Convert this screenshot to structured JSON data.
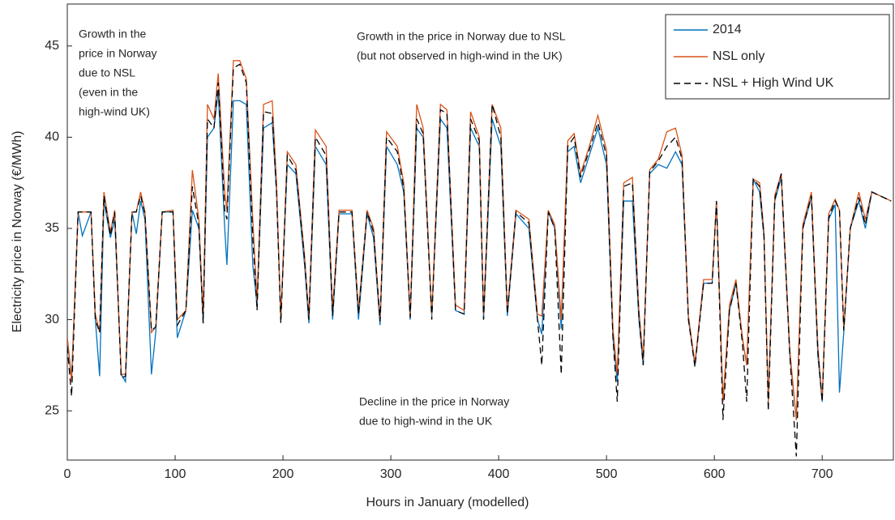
{
  "chart_data": {
    "type": "line",
    "x_label": "Hours in January (modelled)",
    "y_label": "Electricity price in Norway (€/MWh)",
    "xlim": [
      0,
      766
    ],
    "ylim": [
      22.3,
      47.3
    ],
    "xticks": [
      0,
      100,
      200,
      300,
      400,
      500,
      600,
      700
    ],
    "yticks": [
      25,
      30,
      35,
      40,
      45
    ],
    "legend": "upper right",
    "annotations": [
      [
        "Growth in the",
        "price in Norway",
        "due to NSL",
        "(even in the",
        "high-wind UK)"
      ],
      [
        "Growth in the price in Norway due to NSL",
        "(but not observed in high-wind in the UK)"
      ],
      [
        "Decline in the price in Norway",
        "due to high-wind in the UK"
      ]
    ],
    "x": [
      0,
      4,
      10,
      14,
      22,
      26,
      30,
      34,
      40,
      44,
      50,
      54,
      60,
      64,
      68,
      72,
      78,
      82,
      88,
      98,
      102,
      110,
      116,
      122,
      126,
      130,
      136,
      140,
      146,
      148,
      154,
      160,
      166,
      172,
      176,
      182,
      190,
      194,
      198,
      204,
      212,
      220,
      224,
      230,
      240,
      246,
      252,
      264,
      270,
      278,
      284,
      290,
      296,
      306,
      312,
      318,
      324,
      330,
      338,
      346,
      352,
      360,
      368,
      374,
      382,
      386,
      394,
      402,
      408,
      416,
      428,
      436,
      440,
      446,
      452,
      458,
      464,
      470,
      476,
      484,
      492,
      500,
      506,
      510,
      516,
      524,
      530,
      534,
      540,
      548,
      556,
      564,
      570,
      576,
      582,
      590,
      598,
      602,
      608,
      614,
      620,
      626,
      630,
      636,
      642,
      646,
      650,
      656,
      662,
      670,
      676,
      682,
      690,
      696,
      700,
      706,
      712,
      716,
      720,
      726,
      734,
      740,
      746,
      764
    ],
    "series": [
      {
        "name": "2014",
        "color": "#0072bd",
        "dash": false,
        "values": [
          29.0,
          26.8,
          35.9,
          34.6,
          35.9,
          30.0,
          26.9,
          36.5,
          34.5,
          35.5,
          27.0,
          26.6,
          35.9,
          34.7,
          36.5,
          35.5,
          27.0,
          29.3,
          35.9,
          35.9,
          29.0,
          30.5,
          36.0,
          35.0,
          29.8,
          40.0,
          40.5,
          42.5,
          35.0,
          33.0,
          42.0,
          42.0,
          41.8,
          33.0,
          30.8,
          40.5,
          40.8,
          37.0,
          30.0,
          38.5,
          38.0,
          33.0,
          29.8,
          39.5,
          38.5,
          30.0,
          35.8,
          35.8,
          30.0,
          35.8,
          34.5,
          29.7,
          39.5,
          38.5,
          37.0,
          30.0,
          40.5,
          40.0,
          30.2,
          41.0,
          40.5,
          30.5,
          30.3,
          40.5,
          39.5,
          30.0,
          41.0,
          39.5,
          30.2,
          35.8,
          35.0,
          30.0,
          29.2,
          35.9,
          35.0,
          29.5,
          39.2,
          39.5,
          37.5,
          39.0,
          40.5,
          38.5,
          29.0,
          26.6,
          36.5,
          36.5,
          30.0,
          27.5,
          38.0,
          38.5,
          38.3,
          39.2,
          38.5,
          30.0,
          27.5,
          32.0,
          32.0,
          36.5,
          25.5,
          30.5,
          32.0,
          29.0,
          27.5,
          37.7,
          37.0,
          34.5,
          25.5,
          36.5,
          37.8,
          28.0,
          24.5,
          35.0,
          36.7,
          28.0,
          25.5,
          35.5,
          36.3,
          26.0,
          29.3,
          35.0,
          36.5,
          35.0,
          37.0,
          36.5
        ]
      },
      {
        "name": "NSL only",
        "color": "#d95319",
        "dash": false,
        "values": [
          29.0,
          26.6,
          35.9,
          35.9,
          35.9,
          30.3,
          29.3,
          37.0,
          34.8,
          36.0,
          27.0,
          27.0,
          35.9,
          35.9,
          37.0,
          35.9,
          29.3,
          29.6,
          35.9,
          36.0,
          30.0,
          30.5,
          38.2,
          35.5,
          30.2,
          41.8,
          41.0,
          43.5,
          37.0,
          36.0,
          44.2,
          44.2,
          43.2,
          35.5,
          31.0,
          41.8,
          42.0,
          37.5,
          30.0,
          39.2,
          38.5,
          33.5,
          30.2,
          40.4,
          39.5,
          30.5,
          36.0,
          36.0,
          30.5,
          36.0,
          35.0,
          30.0,
          40.3,
          39.5,
          37.5,
          30.2,
          41.8,
          40.5,
          30.3,
          41.8,
          41.5,
          30.8,
          30.5,
          41.4,
          40.0,
          30.3,
          41.8,
          40.5,
          30.5,
          36.0,
          35.5,
          30.3,
          30.2,
          36.0,
          35.2,
          30.0,
          39.8,
          40.2,
          38.0,
          39.5,
          41.2,
          39.3,
          29.5,
          27.0,
          37.5,
          37.8,
          30.5,
          27.8,
          38.2,
          38.8,
          40.3,
          40.5,
          39.0,
          30.2,
          27.6,
          32.2,
          32.2,
          36.5,
          25.5,
          30.8,
          32.2,
          29.0,
          27.5,
          37.7,
          37.5,
          34.8,
          25.5,
          36.8,
          38.0,
          28.3,
          24.5,
          35.2,
          37.0,
          28.5,
          25.6,
          35.8,
          36.6,
          36.0,
          29.5,
          35.0,
          37.0,
          35.5,
          37.0,
          36.5
        ]
      },
      {
        "name": "NSL + High Wind UK",
        "color": "#000000",
        "dash": true,
        "values": [
          28.5,
          25.8,
          35.9,
          35.9,
          35.9,
          30.0,
          29.3,
          36.8,
          34.6,
          35.9,
          26.8,
          26.9,
          35.9,
          35.9,
          36.8,
          35.8,
          29.4,
          29.6,
          35.9,
          35.9,
          29.7,
          30.5,
          37.3,
          35.2,
          29.8,
          41.0,
          40.5,
          43.0,
          36.0,
          35.5,
          43.8,
          44.0,
          43.0,
          34.5,
          30.5,
          41.4,
          41.3,
          37.0,
          29.8,
          39.0,
          38.2,
          33.3,
          30.0,
          40.0,
          39.0,
          30.2,
          35.9,
          35.9,
          30.3,
          35.9,
          34.8,
          29.9,
          40.0,
          39.2,
          37.2,
          30.1,
          41.0,
          40.2,
          30.0,
          41.5,
          41.3,
          30.5,
          30.3,
          41.0,
          39.8,
          30.0,
          41.8,
          40.0,
          30.3,
          35.9,
          35.3,
          30.0,
          27.5,
          35.9,
          35.0,
          27.0,
          39.5,
          40.0,
          37.8,
          39.3,
          40.8,
          39.0,
          29.0,
          25.5,
          37.3,
          37.5,
          30.2,
          27.5,
          38.1,
          38.7,
          39.5,
          40.0,
          38.8,
          30.0,
          27.4,
          32.0,
          32.0,
          36.5,
          24.5,
          30.5,
          32.0,
          28.7,
          25.5,
          37.7,
          37.3,
          34.6,
          25.0,
          36.6,
          38.0,
          28.0,
          22.5,
          35.0,
          36.8,
          28.2,
          25.5,
          35.6,
          36.5,
          36.0,
          29.4,
          35.0,
          36.7,
          35.2,
          37.0,
          36.5
        ]
      }
    ]
  }
}
